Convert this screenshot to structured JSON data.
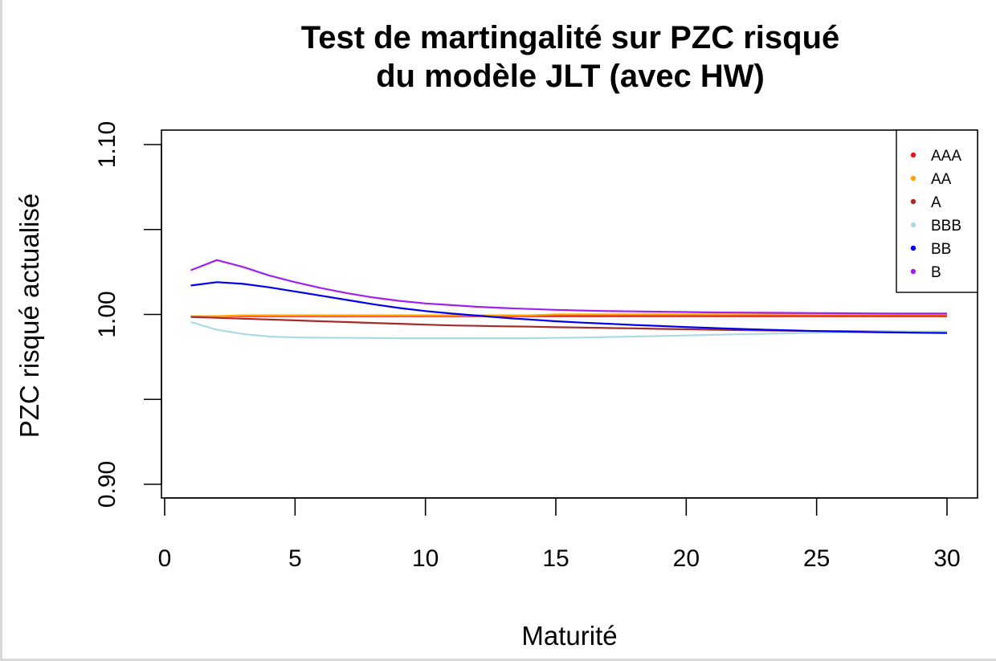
{
  "chart_data": {
    "type": "line",
    "title_lines": [
      "Test de martingalité sur PZC risqué",
      "du modèle JLT (avec HW)"
    ],
    "xlabel": "Maturité",
    "ylabel": "PZC risqué actualisé",
    "xlim": [
      0,
      30
    ],
    "ylim": [
      0.9,
      1.1
    ],
    "xticks": [
      0,
      5,
      10,
      15,
      20,
      25,
      30
    ],
    "xtick_labels": [
      "0",
      "5",
      "10",
      "15",
      "20",
      "25",
      "30"
    ],
    "yticks": [
      0.9,
      0.95,
      1.0,
      1.05,
      1.1
    ],
    "ytick_labels": [
      "0.90",
      "",
      "1.00",
      "",
      "1.10"
    ],
    "grid": false,
    "legend_position": "top-right",
    "x": [
      1,
      2,
      3,
      4,
      5,
      6,
      7,
      8,
      9,
      10,
      11,
      12,
      13,
      14,
      15,
      16,
      17,
      18,
      19,
      20,
      21,
      22,
      23,
      24,
      25,
      26,
      27,
      28,
      29,
      30
    ],
    "series": [
      {
        "name": "AAA",
        "color": "#e31a1c",
        "values": [
          0.999,
          0.999,
          0.999,
          0.999,
          0.999,
          0.999,
          0.999,
          0.999,
          0.999,
          0.999,
          0.999,
          0.999,
          0.999,
          0.999,
          0.999,
          0.999,
          0.999,
          0.999,
          0.999,
          0.999,
          0.999,
          0.999,
          0.999,
          0.999,
          0.999,
          0.999,
          0.999,
          0.999,
          0.999,
          0.999
        ]
      },
      {
        "name": "AA",
        "color": "#ffa500",
        "values": [
          0.999,
          0.999,
          0.9995,
          0.9995,
          0.9995,
          0.9995,
          0.9995,
          0.9995,
          0.9995,
          0.9995,
          0.9995,
          0.9995,
          0.9995,
          0.9995,
          1.0,
          1.0,
          1.0,
          1.0,
          1.0,
          1.0,
          1.0,
          1.0,
          1.0,
          1.0,
          1.0,
          1.0,
          1.0,
          1.0,
          1.0,
          1.0
        ]
      },
      {
        "name": "A",
        "color": "#a52a2a",
        "values": [
          0.9985,
          0.998,
          0.9975,
          0.997,
          0.9965,
          0.996,
          0.9955,
          0.995,
          0.9945,
          0.994,
          0.9935,
          0.9933,
          0.993,
          0.9928,
          0.9925,
          0.9923,
          0.992,
          0.9918,
          0.9915,
          0.9913,
          0.991,
          0.9908,
          0.9906,
          0.9904,
          0.9902,
          0.9901,
          0.99,
          0.9899,
          0.9898,
          0.9897
        ]
      },
      {
        "name": "BBB",
        "color": "#add8e6",
        "values": [
          0.9955,
          0.991,
          0.9885,
          0.987,
          0.9865,
          0.9863,
          0.9862,
          0.9861,
          0.986,
          0.986,
          0.986,
          0.986,
          0.986,
          0.986,
          0.9862,
          0.9864,
          0.9867,
          0.987,
          0.9873,
          0.9876,
          0.988,
          0.9883,
          0.9886,
          0.9889,
          0.9892,
          0.9895,
          0.9897,
          0.9899,
          0.99,
          0.99
        ]
      },
      {
        "name": "BB",
        "color": "#0000ee",
        "values": [
          1.017,
          1.019,
          1.018,
          1.016,
          1.0135,
          1.011,
          1.0085,
          1.006,
          1.0038,
          1.002,
          1.0005,
          0.9993,
          0.998,
          0.997,
          0.996,
          0.9952,
          0.9945,
          0.9938,
          0.9932,
          0.9926,
          0.992,
          0.9915,
          0.991,
          0.9906,
          0.9902,
          0.9899,
          0.9896,
          0.9894,
          0.9892,
          0.9891
        ]
      },
      {
        "name": "B",
        "color": "#a020f0",
        "values": [
          1.026,
          1.032,
          1.028,
          1.023,
          1.019,
          1.0155,
          1.0125,
          1.01,
          1.008,
          1.0065,
          1.0055,
          1.0045,
          1.0038,
          1.0032,
          1.0027,
          1.0023,
          1.002,
          1.0018,
          1.0016,
          1.0014,
          1.0012,
          1.0011,
          1.001,
          1.0009,
          1.0008,
          1.0007,
          1.0006,
          1.0005,
          1.0005,
          1.0005
        ]
      }
    ]
  }
}
